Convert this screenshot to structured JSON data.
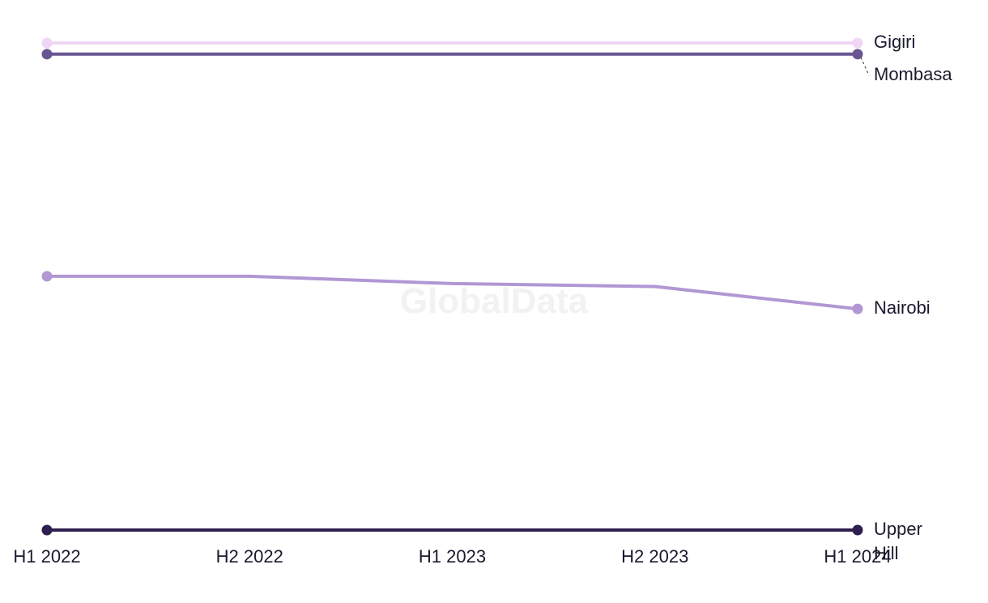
{
  "watermark": "GlobalData",
  "chart_data": {
    "type": "line",
    "title": "",
    "xlabel": "",
    "ylabel": "",
    "x": [
      "H1 2022",
      "H2 2022",
      "H1 2023",
      "H2 2023",
      "H1 2024"
    ],
    "ylim": [
      0,
      100
    ],
    "series": [
      {
        "name": "Gigiri",
        "color": "#f0d6f5",
        "values": [
          100,
          100,
          100,
          100,
          100
        ]
      },
      {
        "name": "Mombasa",
        "color": "#6a5592",
        "values": [
          97.7,
          97.7,
          97.7,
          97.7,
          97.7
        ]
      },
      {
        "name": "Nairobi",
        "color": "#b197d4",
        "values": [
          52.1,
          52.1,
          50.6,
          50.0,
          45.4
        ]
      },
      {
        "name": "Upper Hill",
        "color": "#2e1f4f",
        "values": [
          0,
          0,
          0,
          0,
          0
        ]
      }
    ]
  }
}
